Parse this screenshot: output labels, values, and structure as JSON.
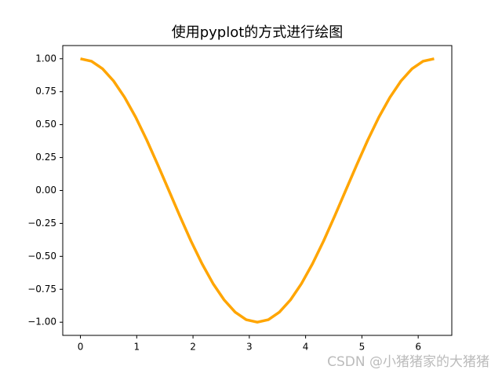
{
  "chart_data": {
    "type": "line",
    "title": "使用pyplot的方式进行绘图",
    "x": [
      0,
      0.196,
      0.393,
      0.589,
      0.785,
      0.982,
      1.178,
      1.374,
      1.571,
      1.767,
      1.963,
      2.16,
      2.356,
      2.553,
      2.749,
      2.945,
      3.142,
      3.338,
      3.534,
      3.731,
      3.927,
      4.123,
      4.32,
      4.516,
      4.712,
      4.909,
      5.105,
      5.301,
      5.498,
      5.694,
      5.89,
      6.087,
      6.283
    ],
    "series": [
      {
        "color": "#ffa500",
        "values": [
          1,
          0.981,
          0.924,
          0.831,
          0.707,
          0.556,
          0.383,
          0.195,
          0,
          -0.195,
          -0.383,
          -0.556,
          -0.707,
          -0.831,
          -0.924,
          -0.981,
          -1,
          -0.981,
          -0.924,
          -0.831,
          -0.707,
          -0.556,
          -0.383,
          -0.195,
          0,
          0.195,
          0.383,
          0.556,
          0.707,
          0.831,
          0.924,
          0.981,
          1
        ]
      }
    ],
    "xlim": [
      -0.314,
      6.597
    ],
    "xticks": [
      0,
      1,
      2,
      3,
      4,
      5,
      6
    ],
    "ylim": [
      -1.1,
      1.1
    ],
    "yticks": [
      {
        "value": 1,
        "label": "1.00"
      },
      {
        "value": 0.75,
        "label": "0.75"
      },
      {
        "value": 0.5,
        "label": "0.50"
      },
      {
        "value": 0.25,
        "label": "0.25"
      },
      {
        "value": 0,
        "label": "0.00"
      },
      {
        "value": -0.25,
        "label": "−0.25"
      },
      {
        "value": -0.5,
        "label": "−0.50"
      },
      {
        "value": -0.75,
        "label": "−0.75"
      },
      {
        "value": -1,
        "label": "−1.00"
      }
    ],
    "watermark": "CSDN @小猪猪家的大猪猪"
  }
}
